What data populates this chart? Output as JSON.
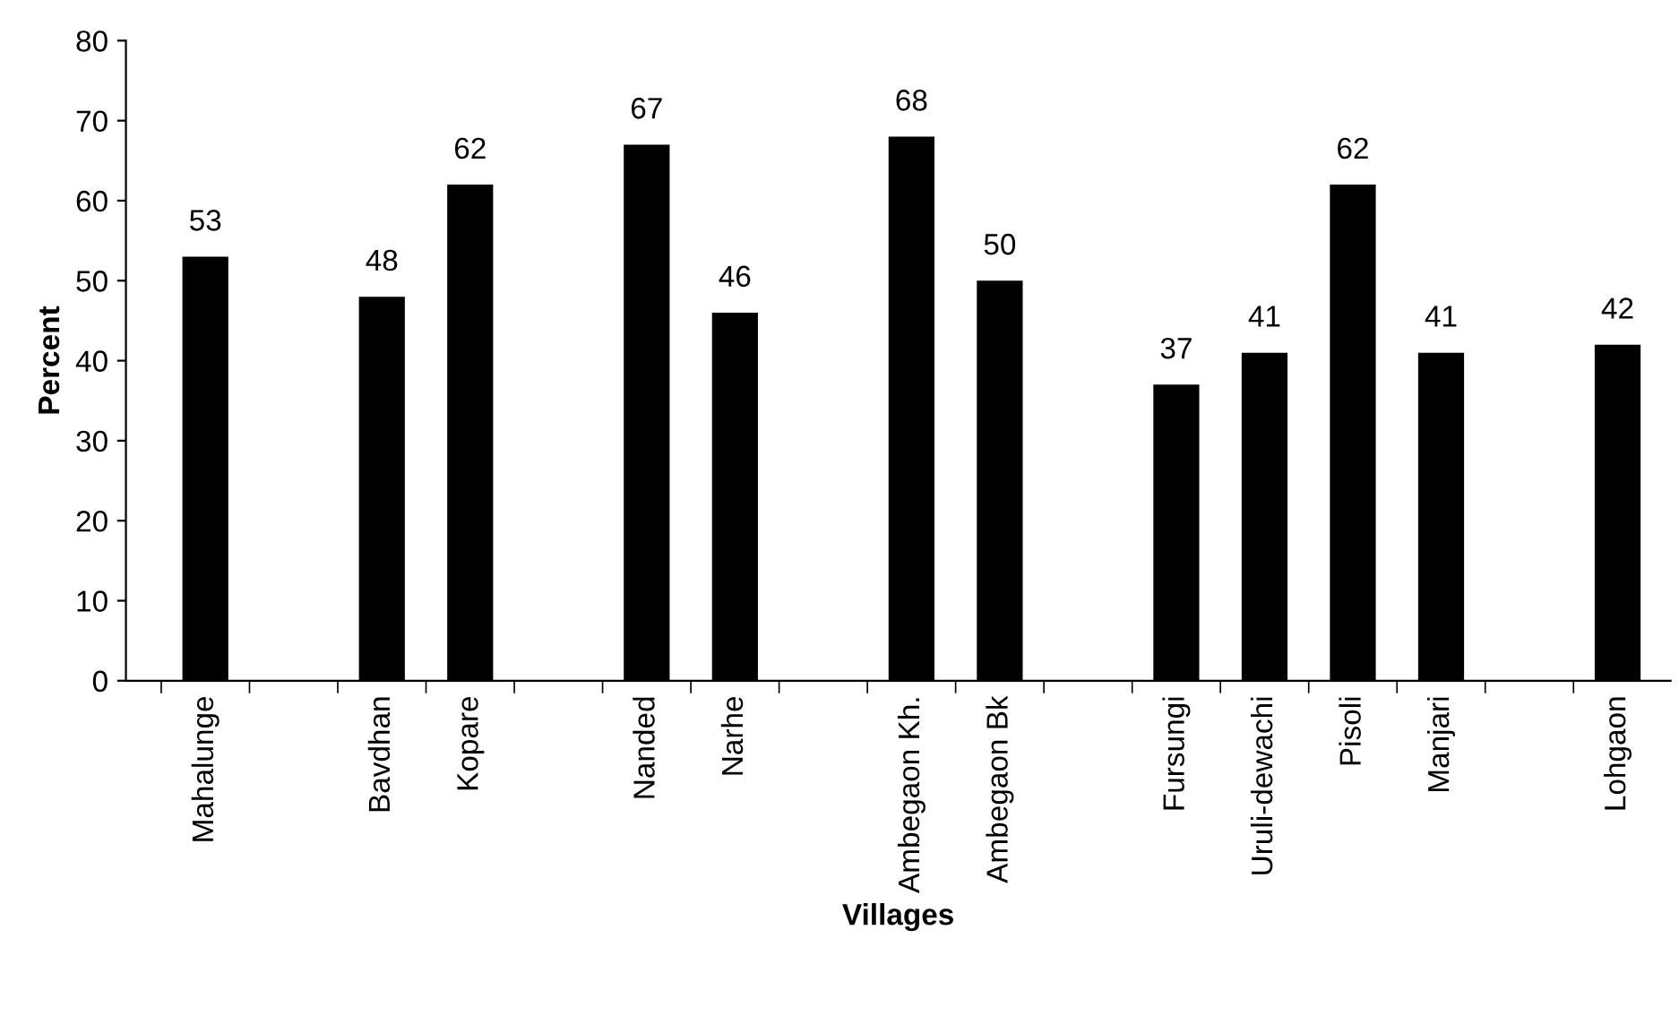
{
  "chart_data": {
    "type": "bar",
    "xlabel": "Villages",
    "ylabel": "Percent",
    "categories": [
      "Mahalunge",
      null,
      "Bavdhan",
      "Kopare",
      null,
      "Nanded",
      "Narhe",
      null,
      "Ambegaon Kh.",
      "Ambegaon Bk",
      null,
      "Fursungi",
      "Uruli-dewachi",
      "Pisoli",
      "Manjari",
      null,
      "Lohgaon"
    ],
    "values": [
      53,
      null,
      48,
      62,
      null,
      67,
      46,
      null,
      68,
      50,
      null,
      37,
      41,
      62,
      41,
      null,
      42
    ],
    "color": "#000000",
    "ylim": [
      0,
      80
    ],
    "yticks": [
      0,
      10,
      20,
      30,
      40,
      50,
      60,
      70,
      80
    ],
    "data_labels": true,
    "grid": false,
    "legend": false
  }
}
